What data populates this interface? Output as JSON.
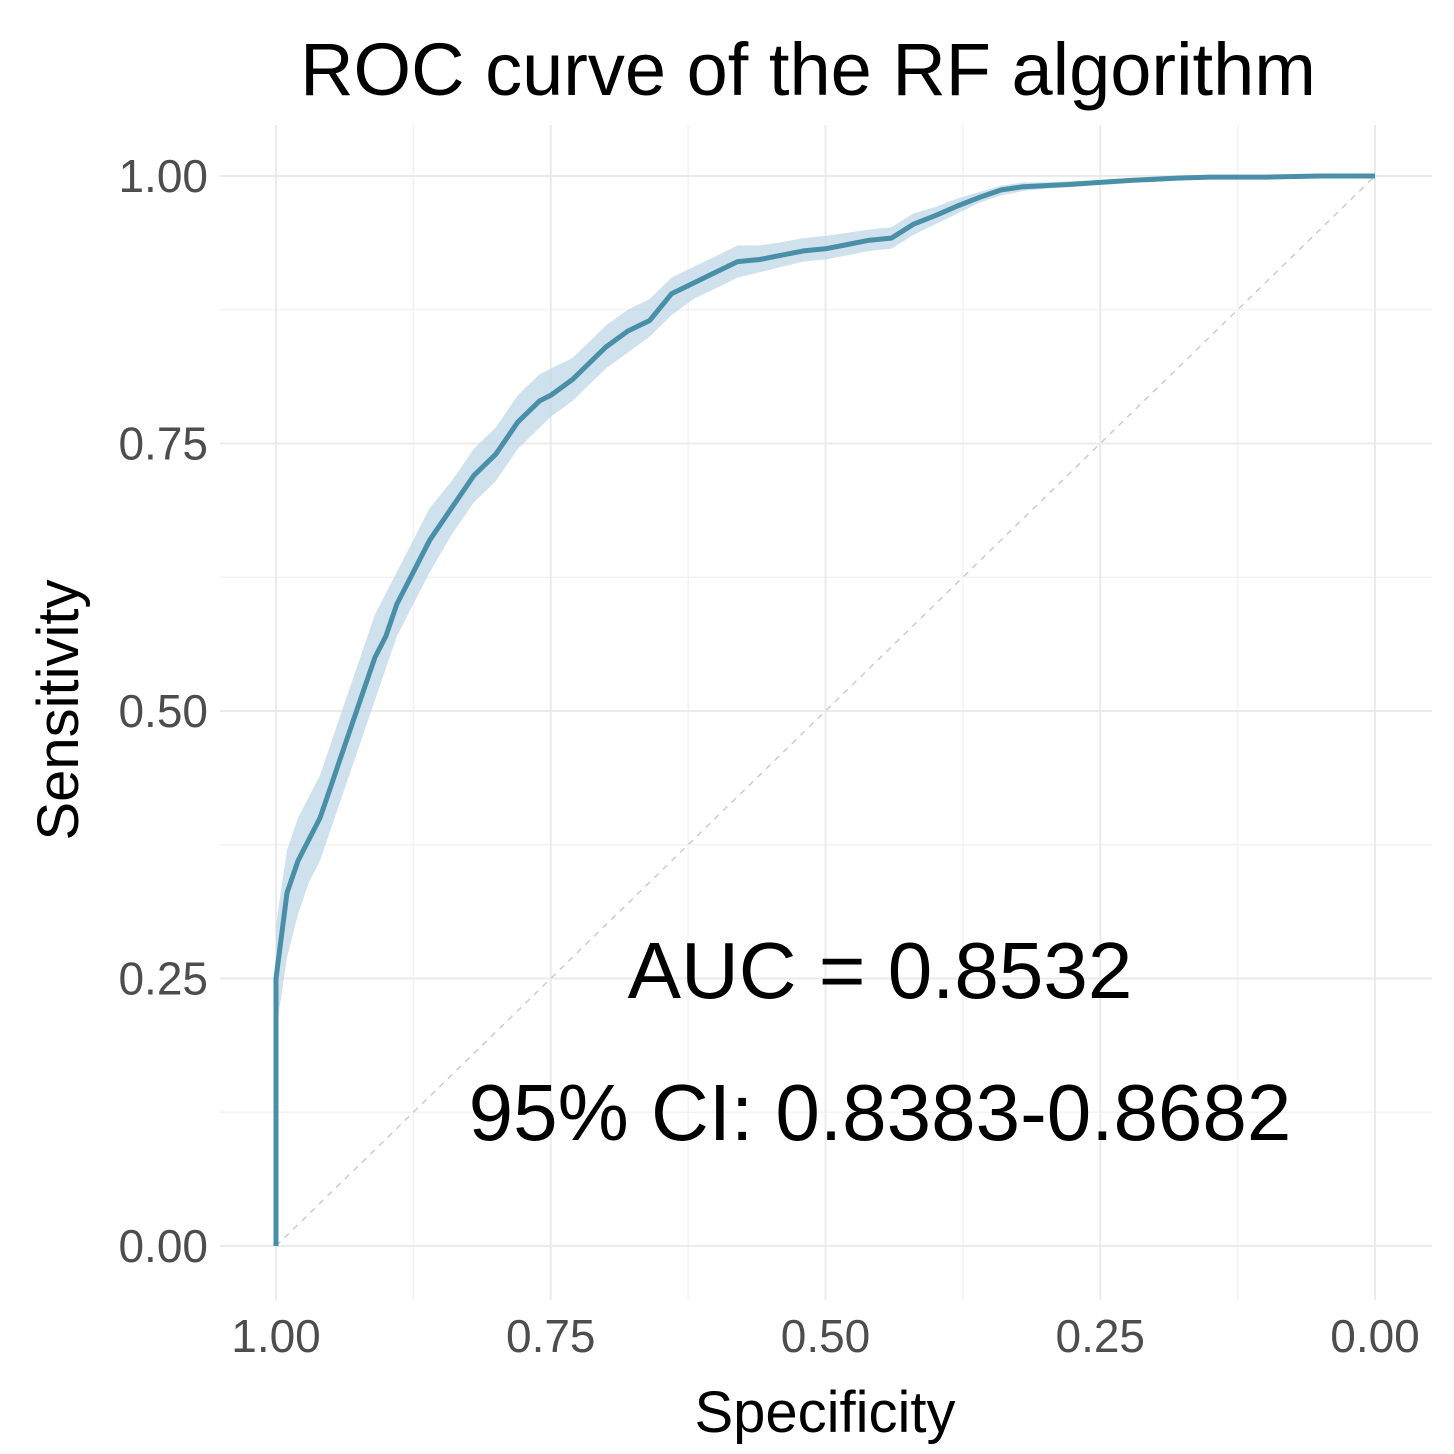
{
  "chart_data": {
    "type": "line",
    "title": "ROC curve of the RF algorithm",
    "xlabel": "Specificity",
    "ylabel": "Sensitivity",
    "x_reversed": true,
    "xlim": [
      1.0,
      0.0
    ],
    "ylim": [
      0.0,
      1.0
    ],
    "x_ticks": [
      "1.00",
      "0.75",
      "0.50",
      "0.25",
      "0.00"
    ],
    "x_tick_values": [
      1.0,
      0.75,
      0.5,
      0.25,
      0.0
    ],
    "y_ticks": [
      "0.00",
      "0.25",
      "0.50",
      "0.75",
      "1.00"
    ],
    "y_tick_values": [
      0.0,
      0.25,
      0.5,
      0.75,
      1.0
    ],
    "grid": true,
    "colors": {
      "line": "#4a8fa8",
      "band": "#bdd7e7",
      "reference": "#cccccc"
    },
    "series": [
      {
        "name": "ROC",
        "specificity": [
          1.0,
          1.0,
          1.0,
          0.99,
          0.98,
          0.97,
          0.96,
          0.95,
          0.94,
          0.93,
          0.92,
          0.91,
          0.9,
          0.89,
          0.88,
          0.87,
          0.86,
          0.84,
          0.82,
          0.8,
          0.78,
          0.76,
          0.75,
          0.73,
          0.72,
          0.7,
          0.68,
          0.66,
          0.64,
          0.62,
          0.6,
          0.58,
          0.56,
          0.54,
          0.52,
          0.5,
          0.48,
          0.46,
          0.44,
          0.42,
          0.4,
          0.38,
          0.36,
          0.34,
          0.32,
          0.3,
          0.28,
          0.25,
          0.22,
          0.18,
          0.15,
          0.1,
          0.05,
          0.0
        ],
        "sensitivity": [
          0.0,
          0.1,
          0.25,
          0.33,
          0.36,
          0.38,
          0.4,
          0.43,
          0.46,
          0.49,
          0.52,
          0.55,
          0.57,
          0.6,
          0.62,
          0.64,
          0.66,
          0.69,
          0.72,
          0.74,
          0.77,
          0.79,
          0.795,
          0.81,
          0.82,
          0.84,
          0.855,
          0.865,
          0.89,
          0.9,
          0.91,
          0.92,
          0.922,
          0.926,
          0.93,
          0.932,
          0.936,
          0.94,
          0.942,
          0.955,
          0.963,
          0.972,
          0.98,
          0.987,
          0.99,
          0.991,
          0.992,
          0.994,
          0.996,
          0.998,
          0.999,
          0.999,
          1.0,
          1.0
        ],
        "ci_lower": [
          0.0,
          0.08,
          0.2,
          0.27,
          0.31,
          0.34,
          0.36,
          0.39,
          0.42,
          0.45,
          0.48,
          0.51,
          0.54,
          0.57,
          0.59,
          0.61,
          0.63,
          0.665,
          0.695,
          0.715,
          0.745,
          0.765,
          0.775,
          0.79,
          0.8,
          0.82,
          0.835,
          0.85,
          0.87,
          0.885,
          0.895,
          0.905,
          0.91,
          0.915,
          0.92,
          0.922,
          0.926,
          0.93,
          0.932,
          0.945,
          0.955,
          0.965,
          0.975,
          0.982,
          0.986,
          0.988,
          0.99,
          0.992,
          0.994,
          0.997,
          0.998,
          0.998,
          0.999,
          1.0
        ],
        "ci_upper": [
          0.0,
          0.12,
          0.3,
          0.37,
          0.4,
          0.42,
          0.44,
          0.47,
          0.5,
          0.53,
          0.56,
          0.59,
          0.61,
          0.63,
          0.65,
          0.67,
          0.69,
          0.715,
          0.745,
          0.765,
          0.795,
          0.815,
          0.82,
          0.83,
          0.84,
          0.86,
          0.875,
          0.885,
          0.905,
          0.915,
          0.925,
          0.935,
          0.935,
          0.938,
          0.942,
          0.944,
          0.947,
          0.95,
          0.952,
          0.965,
          0.971,
          0.979,
          0.985,
          0.991,
          0.994,
          0.994,
          0.995,
          0.996,
          0.998,
          0.999,
          1.0,
          1.0,
          1.0,
          1.0
        ]
      },
      {
        "name": "reference",
        "specificity": [
          1.0,
          0.0
        ],
        "sensitivity": [
          0.0,
          1.0
        ]
      }
    ],
    "annotations": [
      "AUC = 0.8532",
      "95% CI: 0.8383-0.8682"
    ]
  }
}
